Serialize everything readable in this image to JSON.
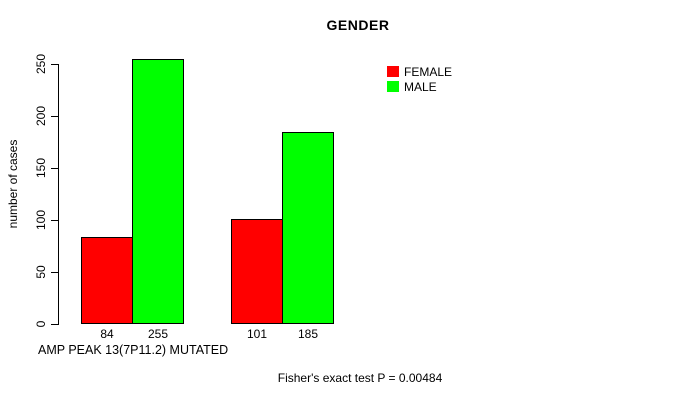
{
  "chart_data": {
    "type": "bar",
    "title": "GENDER",
    "xlabel": "AMP PEAK 13(7P11.2) MUTATED",
    "ylabel": "number of cases",
    "ylim": [
      0,
      250
    ],
    "yticks": [
      0,
      50,
      100,
      150,
      200,
      250
    ],
    "grid": false,
    "legend_position": "top-right",
    "value_labels_shown": true,
    "series": [
      {
        "name": "FEMALE",
        "color": "#ff0000",
        "values": [
          84,
          101
        ]
      },
      {
        "name": "MALE",
        "color": "#00ff00",
        "values": [
          255,
          185
        ]
      }
    ],
    "annotation": "Fisher's exact test P = 0.00484"
  },
  "legend": {
    "items": [
      {
        "label": "FEMALE",
        "color": "#ff0000"
      },
      {
        "label": "MALE",
        "color": "#00ff00"
      }
    ]
  },
  "colors": {
    "background": "#ffffff",
    "axis": "#000000",
    "text": "#000000"
  }
}
